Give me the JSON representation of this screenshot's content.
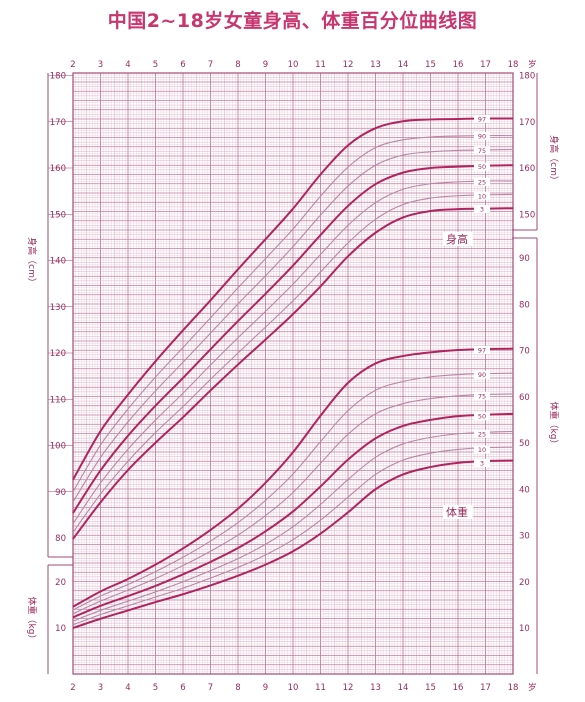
{
  "title": "中国2~18岁女童身高、体重百分位曲线图",
  "colors": {
    "grid": "#d9a8bd",
    "grid_major": "#c07c9c",
    "frame": "#a44a74",
    "curve_main": "#b0245f",
    "curve_light": "#b887a6",
    "text": "#9b2a5d",
    "title": "#c8356f"
  },
  "chart_data": [
    {
      "type": "line",
      "title": "",
      "xlabel": "岁",
      "ylabel": "身高（cm）",
      "curve_label": "身高",
      "x_ticks": [
        2,
        3,
        4,
        5,
        6,
        7,
        8,
        9,
        10,
        11,
        12,
        13,
        14,
        15,
        16,
        17,
        18
      ],
      "y_ticks": [
        80,
        90,
        100,
        110,
        120,
        130,
        140,
        150,
        160,
        170,
        180
      ],
      "ylim": [
        80,
        180
      ],
      "xlim": [
        2,
        18
      ],
      "x": [
        2,
        3,
        4,
        5,
        6,
        7,
        8,
        9,
        10,
        11,
        12,
        13,
        14,
        15,
        16,
        17,
        18
      ],
      "series": [
        {
          "name": "97",
          "values": [
            92.6,
            103.1,
            111.0,
            118.2,
            124.9,
            131.4,
            138.1,
            144.6,
            151.2,
            158.6,
            164.9,
            168.6,
            170.1,
            170.5,
            170.6,
            170.7,
            170.7
          ]
        },
        {
          "name": "90",
          "values": [
            90.0,
            100.1,
            107.9,
            114.8,
            121.2,
            127.6,
            134.1,
            140.4,
            146.8,
            153.9,
            160.2,
            164.4,
            166.1,
            166.7,
            166.9,
            167.0,
            167.0
          ]
        },
        {
          "name": "75",
          "values": [
            87.8,
            97.4,
            105.1,
            111.8,
            118.0,
            124.3,
            130.6,
            136.7,
            143.0,
            149.8,
            156.1,
            160.6,
            162.8,
            163.5,
            163.8,
            163.9,
            164.0
          ]
        },
        {
          "name": "50",
          "values": [
            85.4,
            94.6,
            102.1,
            108.6,
            114.6,
            120.8,
            126.9,
            132.8,
            138.9,
            145.5,
            151.8,
            156.5,
            159.0,
            160.0,
            160.3,
            160.5,
            160.6
          ]
        },
        {
          "name": "25",
          "values": [
            83.1,
            91.9,
            99.2,
            105.5,
            111.3,
            117.4,
            123.3,
            129.0,
            134.9,
            141.3,
            147.6,
            152.5,
            155.4,
            156.6,
            157.0,
            157.2,
            157.2
          ]
        },
        {
          "name": "10",
          "values": [
            81.2,
            89.5,
            96.6,
            102.8,
            108.4,
            114.3,
            120.0,
            125.6,
            131.3,
            137.5,
            143.8,
            148.9,
            152.1,
            153.5,
            154.0,
            154.2,
            154.3
          ]
        },
        {
          "name": "3",
          "values": [
            79.8,
            87.7,
            94.7,
            100.6,
            106.1,
            111.9,
            117.5,
            122.9,
            128.4,
            134.4,
            140.9,
            146.0,
            149.3,
            150.7,
            151.1,
            151.2,
            151.3
          ]
        }
      ]
    },
    {
      "type": "line",
      "title": "",
      "xlabel": "岁",
      "ylabel": "体重（kg）",
      "curve_label": "体重",
      "x_ticks": [
        2,
        3,
        4,
        5,
        6,
        7,
        8,
        9,
        10,
        11,
        12,
        13,
        14,
        15,
        16,
        17,
        18
      ],
      "y_ticks": [
        10,
        20,
        30,
        40,
        50,
        60,
        70,
        80,
        90
      ],
      "ylim": [
        5,
        95
      ],
      "xlim": [
        2,
        18
      ],
      "x": [
        2,
        3,
        4,
        5,
        6,
        7,
        8,
        9,
        10,
        11,
        12,
        13,
        14,
        15,
        16,
        17,
        18
      ],
      "series": [
        {
          "name": "97",
          "values": [
            14.6,
            17.9,
            20.6,
            23.7,
            27.2,
            31.2,
            35.8,
            41.4,
            48.0,
            55.9,
            63.0,
            67.2,
            68.8,
            69.6,
            70.1,
            70.3,
            70.4
          ]
        },
        {
          "name": "90",
          "values": [
            13.9,
            16.9,
            19.4,
            22.2,
            25.3,
            28.8,
            32.8,
            37.6,
            43.3,
            50.3,
            57.0,
            61.4,
            63.3,
            64.3,
            64.8,
            65.0,
            65.1
          ]
        },
        {
          "name": "75",
          "values": [
            13.1,
            15.8,
            18.2,
            20.7,
            23.5,
            26.6,
            30.1,
            34.3,
            39.3,
            45.6,
            51.9,
            56.3,
            58.5,
            59.6,
            60.2,
            60.5,
            60.6
          ]
        },
        {
          "name": "50",
          "values": [
            12.3,
            14.8,
            16.9,
            19.1,
            21.6,
            24.3,
            27.3,
            30.9,
            35.2,
            40.6,
            46.4,
            51.0,
            53.7,
            55.0,
            55.8,
            56.1,
            56.3
          ]
        },
        {
          "name": "25",
          "values": [
            11.5,
            13.8,
            15.8,
            17.8,
            20.0,
            22.4,
            25.0,
            28.1,
            31.9,
            36.7,
            42.1,
            46.9,
            49.8,
            51.2,
            52.0,
            52.3,
            52.5
          ]
        },
        {
          "name": "10",
          "values": [
            10.7,
            12.9,
            14.8,
            16.7,
            18.6,
            20.8,
            23.1,
            25.8,
            29.1,
            33.3,
            38.3,
            43.2,
            46.3,
            47.8,
            48.6,
            49.0,
            49.1
          ]
        },
        {
          "name": "3",
          "values": [
            10.0,
            12.0,
            13.8,
            15.6,
            17.3,
            19.2,
            21.3,
            23.7,
            26.6,
            30.4,
            35.0,
            40.0,
            43.2,
            44.8,
            45.7,
            46.1,
            46.2
          ]
        }
      ]
    }
  ]
}
